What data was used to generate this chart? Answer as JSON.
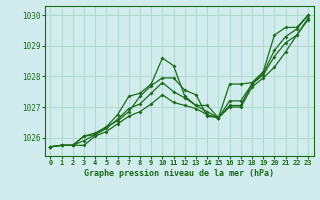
{
  "title": "Graphe pression niveau de la mer (hPa)",
  "bg_color": "#d0ecec",
  "line_color": "#1a6b1a",
  "grid_color": "#b0d8cc",
  "xlim": [
    -0.5,
    23.5
  ],
  "ylim": [
    1025.4,
    1030.3
  ],
  "yticks": [
    1026,
    1027,
    1028,
    1029,
    1030
  ],
  "xticks": [
    0,
    1,
    2,
    3,
    4,
    5,
    6,
    7,
    8,
    9,
    10,
    11,
    12,
    13,
    14,
    15,
    16,
    17,
    18,
    19,
    20,
    21,
    22,
    23
  ],
  "series": [
    {
      "x": [
        0,
        1,
        2,
        3,
        4,
        5,
        6,
        7,
        8,
        9,
        10,
        11,
        12,
        13,
        14,
        15,
        16,
        17,
        18,
        19,
        20,
        21,
        22,
        23
      ],
      "y": [
        1025.7,
        1025.75,
        1025.75,
        1025.75,
        1026.05,
        1026.2,
        1026.45,
        1026.7,
        1026.85,
        1027.1,
        1027.4,
        1027.15,
        1027.05,
        1026.95,
        1026.75,
        1026.65,
        1027.0,
        1027.0,
        1027.65,
        1027.95,
        1028.3,
        1028.8,
        1029.35,
        1029.9
      ]
    },
    {
      "x": [
        0,
        1,
        2,
        3,
        4,
        5,
        6,
        7,
        8,
        9,
        10,
        11,
        12,
        13,
        14,
        15,
        16,
        17,
        18,
        19,
        20,
        21,
        22,
        23
      ],
      "y": [
        1025.7,
        1025.75,
        1025.75,
        1025.9,
        1026.1,
        1026.3,
        1026.6,
        1026.95,
        1027.1,
        1027.45,
        1027.8,
        1027.5,
        1027.3,
        1027.05,
        1026.85,
        1026.65,
        1027.2,
        1027.2,
        1027.75,
        1028.05,
        1028.65,
        1029.1,
        1029.35,
        1029.85
      ]
    },
    {
      "x": [
        0,
        1,
        2,
        3,
        4,
        5,
        6,
        7,
        8,
        9,
        10,
        11,
        12,
        13,
        14,
        15,
        16,
        17,
        18,
        19,
        20,
        21,
        22,
        23
      ],
      "y": [
        1025.7,
        1025.75,
        1025.75,
        1026.05,
        1026.15,
        1026.35,
        1026.55,
        1026.85,
        1027.35,
        1027.7,
        1027.95,
        1027.95,
        1027.55,
        1027.4,
        1026.7,
        1026.65,
        1027.05,
        1027.05,
        1027.75,
        1028.1,
        1028.85,
        1029.3,
        1029.55,
        1030.0
      ]
    },
    {
      "x": [
        0,
        1,
        2,
        3,
        4,
        5,
        6,
        7,
        8,
        9,
        10,
        11,
        12,
        13,
        14,
        15,
        16,
        17,
        18,
        19,
        20,
        21,
        22,
        23
      ],
      "y": [
        1025.7,
        1025.75,
        1025.75,
        1026.05,
        1026.1,
        1026.35,
        1026.75,
        1027.35,
        1027.45,
        1027.75,
        1028.6,
        1028.35,
        1027.35,
        1027.05,
        1027.05,
        1026.65,
        1027.75,
        1027.75,
        1027.8,
        1028.15,
        1029.35,
        1029.6,
        1029.6,
        1030.0
      ]
    }
  ]
}
